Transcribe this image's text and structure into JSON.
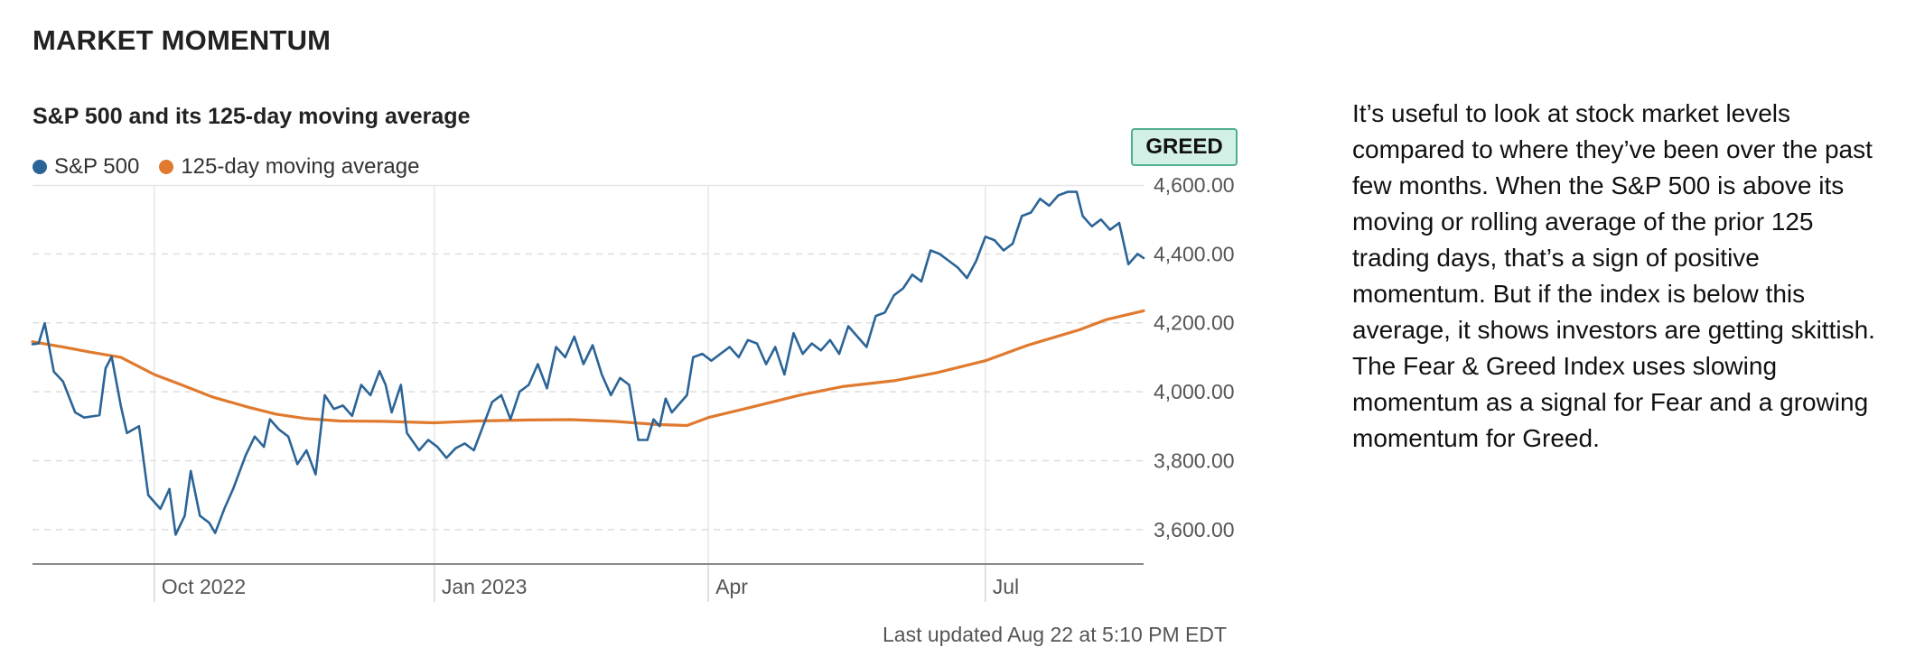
{
  "section_title": "MARKET MOMENTUM",
  "badge": "GREED",
  "last_updated": "Last updated Aug 22 at 5:10 PM EDT",
  "description": "It’s useful to look at stock market levels compared to where they’ve been over the past few months. When the S&P 500 is above its moving or rolling average of the prior 125 trading days, that’s a sign of positive momentum. But if the index is below this average, it shows investors are getting skittish. The Fear & Greed Index uses slowing momentum as a signal for Fear and a growing momentum for Greed.",
  "colors": {
    "sp500": "#2b6496",
    "moving_average": "#e07a2f",
    "badge_bg": "#d3f0e6",
    "badge_border": "#4fae8c"
  },
  "chart_data": {
    "type": "line",
    "title": "S&P 500 and its 125-day moving average",
    "xlabel": "",
    "ylabel": "",
    "ylim": [
      3500,
      4600
    ],
    "y_ticks": [
      3600,
      3800,
      4000,
      4200,
      4400,
      4600
    ],
    "y_tick_labels": [
      "3,600.00",
      "3,800.00",
      "4,000.00",
      "4,200.00",
      "4,400.00",
      "4,600.00"
    ],
    "x_range": [
      "2022-08-22",
      "2023-08-22"
    ],
    "x_ticks": [
      {
        "date": "2022-10-01",
        "label": "Oct 2022"
      },
      {
        "date": "2023-01-01",
        "label": "Jan 2023"
      },
      {
        "date": "2023-04-01",
        "label": "Apr"
      },
      {
        "date": "2023-07-01",
        "label": "Jul"
      }
    ],
    "grid": "horizontal dashed, vertical at month ticks",
    "legend": "top-left",
    "series": [
      {
        "name": "S&P 500",
        "color": "#2b6496",
        "points": [
          [
            "2022-08-22",
            4138
          ],
          [
            "2022-08-24",
            4140
          ],
          [
            "2022-08-26",
            4199
          ],
          [
            "2022-08-29",
            4058
          ],
          [
            "2022-09-01",
            4030
          ],
          [
            "2022-09-05",
            3940
          ],
          [
            "2022-09-08",
            3925
          ],
          [
            "2022-09-13",
            3932
          ],
          [
            "2022-09-15",
            4068
          ],
          [
            "2022-09-17",
            4102
          ],
          [
            "2022-09-20",
            3960
          ],
          [
            "2022-09-22",
            3880
          ],
          [
            "2022-09-26",
            3900
          ],
          [
            "2022-09-29",
            3700
          ],
          [
            "2022-10-03",
            3660
          ],
          [
            "2022-10-06",
            3718
          ],
          [
            "2022-10-08",
            3585
          ],
          [
            "2022-10-11",
            3640
          ],
          [
            "2022-10-13",
            3770
          ],
          [
            "2022-10-16",
            3640
          ],
          [
            "2022-10-19",
            3620
          ],
          [
            "2022-10-21",
            3590
          ],
          [
            "2022-10-24",
            3660
          ],
          [
            "2022-10-27",
            3720
          ],
          [
            "2022-10-31",
            3815
          ],
          [
            "2022-11-03",
            3870
          ],
          [
            "2022-11-06",
            3840
          ],
          [
            "2022-11-08",
            3920
          ],
          [
            "2022-11-11",
            3890
          ],
          [
            "2022-11-14",
            3870
          ],
          [
            "2022-11-17",
            3790
          ],
          [
            "2022-11-20",
            3830
          ],
          [
            "2022-11-23",
            3760
          ],
          [
            "2022-11-26",
            3990
          ],
          [
            "2022-11-29",
            3950
          ],
          [
            "2022-12-02",
            3960
          ],
          [
            "2022-12-05",
            3930
          ],
          [
            "2022-12-08",
            4020
          ],
          [
            "2022-12-11",
            3990
          ],
          [
            "2022-12-14",
            4060
          ],
          [
            "2022-12-16",
            4020
          ],
          [
            "2022-12-18",
            3940
          ],
          [
            "2022-12-21",
            4020
          ],
          [
            "2022-12-23",
            3880
          ],
          [
            "2022-12-27",
            3830
          ],
          [
            "2022-12-30",
            3860
          ],
          [
            "2023-01-02",
            3840
          ],
          [
            "2023-01-05",
            3808
          ],
          [
            "2023-01-08",
            3836
          ],
          [
            "2023-01-11",
            3850
          ],
          [
            "2023-01-14",
            3830
          ],
          [
            "2023-01-17",
            3900
          ],
          [
            "2023-01-20",
            3970
          ],
          [
            "2023-01-23",
            3990
          ],
          [
            "2023-01-26",
            3920
          ],
          [
            "2023-01-29",
            4000
          ],
          [
            "2023-02-01",
            4020
          ],
          [
            "2023-02-04",
            4080
          ],
          [
            "2023-02-07",
            4010
          ],
          [
            "2023-02-10",
            4130
          ],
          [
            "2023-02-13",
            4100
          ],
          [
            "2023-02-16",
            4160
          ],
          [
            "2023-02-19",
            4080
          ],
          [
            "2023-02-22",
            4135
          ],
          [
            "2023-02-25",
            4050
          ],
          [
            "2023-02-28",
            3990
          ],
          [
            "2023-03-03",
            4040
          ],
          [
            "2023-03-06",
            4020
          ],
          [
            "2023-03-09",
            3860
          ],
          [
            "2023-03-12",
            3860
          ],
          [
            "2023-03-14",
            3920
          ],
          [
            "2023-03-16",
            3900
          ],
          [
            "2023-03-18",
            3980
          ],
          [
            "2023-03-20",
            3940
          ],
          [
            "2023-03-22",
            3960
          ],
          [
            "2023-03-25",
            3990
          ],
          [
            "2023-03-27",
            4100
          ],
          [
            "2023-03-30",
            4110
          ],
          [
            "2023-04-02",
            4090
          ],
          [
            "2023-04-05",
            4110
          ],
          [
            "2023-04-08",
            4130
          ],
          [
            "2023-04-11",
            4100
          ],
          [
            "2023-04-14",
            4150
          ],
          [
            "2023-04-17",
            4140
          ],
          [
            "2023-04-20",
            4080
          ],
          [
            "2023-04-23",
            4130
          ],
          [
            "2023-04-26",
            4050
          ],
          [
            "2023-04-29",
            4170
          ],
          [
            "2023-05-02",
            4110
          ],
          [
            "2023-05-05",
            4140
          ],
          [
            "2023-05-08",
            4120
          ],
          [
            "2023-05-11",
            4150
          ],
          [
            "2023-05-14",
            4110
          ],
          [
            "2023-05-17",
            4190
          ],
          [
            "2023-05-20",
            4160
          ],
          [
            "2023-05-23",
            4130
          ],
          [
            "2023-05-26",
            4220
          ],
          [
            "2023-05-29",
            4230
          ],
          [
            "2023-06-01",
            4280
          ],
          [
            "2023-06-04",
            4300
          ],
          [
            "2023-06-07",
            4340
          ],
          [
            "2023-06-10",
            4320
          ],
          [
            "2023-06-13",
            4410
          ],
          [
            "2023-06-16",
            4400
          ],
          [
            "2023-06-19",
            4380
          ],
          [
            "2023-06-22",
            4360
          ],
          [
            "2023-06-25",
            4330
          ],
          [
            "2023-06-28",
            4380
          ],
          [
            "2023-07-01",
            4450
          ],
          [
            "2023-07-04",
            4440
          ],
          [
            "2023-07-07",
            4410
          ],
          [
            "2023-07-10",
            4430
          ],
          [
            "2023-07-13",
            4510
          ],
          [
            "2023-07-16",
            4520
          ],
          [
            "2023-07-19",
            4560
          ],
          [
            "2023-07-22",
            4540
          ],
          [
            "2023-07-25",
            4570
          ],
          [
            "2023-07-28",
            4580
          ],
          [
            "2023-07-31",
            4580
          ],
          [
            "2023-08-02",
            4510
          ],
          [
            "2023-08-05",
            4480
          ],
          [
            "2023-08-08",
            4500
          ],
          [
            "2023-08-11",
            4470
          ],
          [
            "2023-08-14",
            4490
          ],
          [
            "2023-08-17",
            4370
          ],
          [
            "2023-08-20",
            4400
          ],
          [
            "2023-08-22",
            4388
          ]
        ]
      },
      {
        "name": "125-day moving average",
        "color": "#e07a2f",
        "points": [
          [
            "2022-08-22",
            4145
          ],
          [
            "2022-09-01",
            4130
          ],
          [
            "2022-09-10",
            4115
          ],
          [
            "2022-09-20",
            4100
          ],
          [
            "2022-10-01",
            4050
          ],
          [
            "2022-10-10",
            4020
          ],
          [
            "2022-10-20",
            3985
          ],
          [
            "2022-11-01",
            3955
          ],
          [
            "2022-11-10",
            3935
          ],
          [
            "2022-11-20",
            3922
          ],
          [
            "2022-12-01",
            3915
          ],
          [
            "2022-12-15",
            3914
          ],
          [
            "2023-01-01",
            3910
          ],
          [
            "2023-01-15",
            3915
          ],
          [
            "2023-02-01",
            3918
          ],
          [
            "2023-02-15",
            3919
          ],
          [
            "2023-03-01",
            3914
          ],
          [
            "2023-03-15",
            3905
          ],
          [
            "2023-03-25",
            3902
          ],
          [
            "2023-04-01",
            3925
          ],
          [
            "2023-04-15",
            3955
          ],
          [
            "2023-05-01",
            3990
          ],
          [
            "2023-05-15",
            4015
          ],
          [
            "2023-06-01",
            4032
          ],
          [
            "2023-06-15",
            4055
          ],
          [
            "2023-07-01",
            4090
          ],
          [
            "2023-07-15",
            4135
          ],
          [
            "2023-08-01",
            4180
          ],
          [
            "2023-08-10",
            4210
          ],
          [
            "2023-08-22",
            4235
          ]
        ]
      }
    ]
  }
}
